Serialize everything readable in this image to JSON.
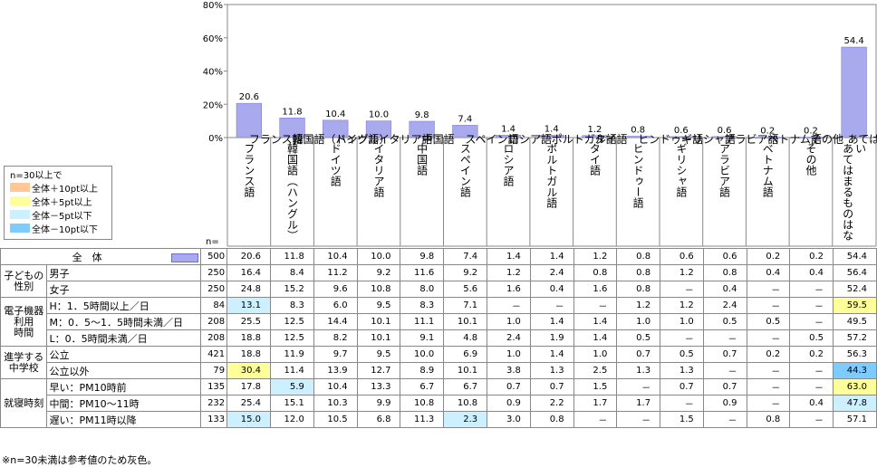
{
  "chart_data": {
    "type": "bar",
    "yticks": [
      "80%",
      "60%",
      "40%",
      "20%",
      "0%"
    ],
    "ylim": [
      0,
      80
    ],
    "categories": [
      "フランス語",
      "韓国語（ハングル）",
      "ドイツ語",
      "イタリア語",
      "中国語",
      "スペイン語",
      "ロシア語",
      "ポルトガル語",
      "タイ語",
      "ヒンドゥー語",
      "ギリシャ語",
      "アラビア語",
      "ベトナム語",
      "その他",
      "あてはまるものはない"
    ],
    "values": [
      20.6,
      11.8,
      10.4,
      10.0,
      9.8,
      7.4,
      1.4,
      1.4,
      1.2,
      0.8,
      0.6,
      0.6,
      0.2,
      0.2,
      54.4
    ],
    "value_labels": [
      "20.6",
      "11.8",
      "10.4",
      "10.0",
      "9.8",
      "7.4",
      "1.4",
      "1.4",
      "1.2",
      "0.8",
      "0.6",
      "0.6",
      "0.2",
      "0.2",
      "54.4"
    ],
    "bar_color": "#a9a9ee"
  },
  "n_label": "n=",
  "legend": {
    "title": "n=30以上で",
    "items": [
      {
        "label": "全体＋10pt以上",
        "color": "#ffc896"
      },
      {
        "label": "全体＋5pt以上",
        "color": "#ffff99"
      },
      {
        "label": "全体－5pt以下",
        "color": "#ccf0ff"
      },
      {
        "label": "全体－10pt以下",
        "color": "#7ecbff"
      }
    ]
  },
  "colors": {
    "p10": "#ffc896",
    "p5": "#ffff99",
    "m5": "#ccf0ff",
    "m10": "#7ecbff"
  },
  "table": {
    "total": {
      "label": "全　体",
      "n": "500",
      "values": [
        "20.6",
        "11.8",
        "10.4",
        "10.0",
        "9.8",
        "7.4",
        "1.4",
        "1.4",
        "1.2",
        "0.8",
        "0.6",
        "0.6",
        "0.2",
        "0.2",
        "54.4"
      ]
    },
    "groups": [
      {
        "label": "子どもの性別",
        "rows": [
          {
            "label": "男子",
            "n": "250",
            "values": [
              "16.4",
              "8.4",
              "11.2",
              "9.2",
              "11.6",
              "9.2",
              "1.2",
              "2.4",
              "0.8",
              "0.8",
              "1.2",
              "0.8",
              "0.4",
              "0.4",
              "56.4"
            ],
            "hl": []
          },
          {
            "label": "女子",
            "n": "250",
            "values": [
              "24.8",
              "15.2",
              "9.6",
              "10.8",
              "8.0",
              "5.6",
              "1.6",
              "0.4",
              "1.6",
              "0.8",
              "－",
              "0.4",
              "－",
              "－",
              "52.4"
            ],
            "hl": []
          }
        ]
      },
      {
        "label": "時間",
        "label2": "電子機器利用",
        "rows": [
          {
            "label": "H：1．5時間以上／日",
            "n": "84",
            "values": [
              "13.1",
              "8.3",
              "6.0",
              "9.5",
              "8.3",
              "7.1",
              "－",
              "－",
              "－",
              "1.2",
              "1.2",
              "2.4",
              "－",
              "－",
              "59.5"
            ],
            "hl": [
              [
                0,
                "m5"
              ],
              [
                14,
                "p5"
              ]
            ]
          },
          {
            "label": "M：0．5～1．5時間未満／日",
            "n": "208",
            "values": [
              "25.5",
              "12.5",
              "14.4",
              "10.1",
              "11.1",
              "10.1",
              "1.0",
              "1.4",
              "1.4",
              "1.0",
              "1.0",
              "0.5",
              "0.5",
              "－",
              "49.5"
            ],
            "hl": []
          },
          {
            "label": "L：0．5時間未満／日",
            "n": "208",
            "values": [
              "18.8",
              "12.5",
              "8.2",
              "10.1",
              "9.1",
              "4.8",
              "2.4",
              "1.9",
              "1.4",
              "0.5",
              "－",
              "－",
              "－",
              "0.5",
              "57.2"
            ],
            "hl": []
          }
        ]
      },
      {
        "label": "進学する中学校",
        "rows": [
          {
            "label": "公立",
            "n": "421",
            "values": [
              "18.8",
              "11.9",
              "9.7",
              "9.5",
              "10.0",
              "6.9",
              "1.0",
              "1.4",
              "1.0",
              "0.7",
              "0.5",
              "0.7",
              "0.2",
              "0.2",
              "56.3"
            ],
            "hl": []
          },
          {
            "label": "公立以外",
            "n": "79",
            "values": [
              "30.4",
              "11.4",
              "13.9",
              "12.7",
              "8.9",
              "10.1",
              "3.8",
              "1.3",
              "2.5",
              "1.3",
              "1.3",
              "－",
              "－",
              "－",
              "44.3"
            ],
            "hl": [
              [
                0,
                "p5"
              ],
              [
                14,
                "m10"
              ]
            ]
          }
        ]
      },
      {
        "label": "就寝時刻",
        "rows": [
          {
            "label": "早い：PM10時前",
            "n": "135",
            "values": [
              "17.8",
              "5.9",
              "10.4",
              "13.3",
              "6.7",
              "6.7",
              "0.7",
              "0.7",
              "1.5",
              "－",
              "0.7",
              "0.7",
              "－",
              "－",
              "63.0"
            ],
            "hl": [
              [
                1,
                "m5"
              ],
              [
                14,
                "p5"
              ]
            ]
          },
          {
            "label": "中間：PM10～11時",
            "n": "232",
            "values": [
              "25.4",
              "15.1",
              "10.3",
              "9.9",
              "10.8",
              "10.8",
              "0.9",
              "2.2",
              "1.7",
              "1.7",
              "－",
              "0.9",
              "－",
              "0.4",
              "47.8"
            ],
            "hl": [
              [
                14,
                "m5"
              ]
            ]
          },
          {
            "label": "遅い：PM11時以降",
            "n": "133",
            "values": [
              "15.0",
              "12.0",
              "10.5",
              "6.8",
              "11.3",
              "2.3",
              "3.0",
              "0.8",
              "－",
              "－",
              "1.5",
              "－",
              "0.8",
              "－",
              "57.1"
            ],
            "hl": [
              [
                0,
                "m5"
              ],
              [
                5,
                "m5"
              ]
            ]
          }
        ]
      }
    ]
  },
  "note": "※n=30未満は参考値のため灰色。"
}
